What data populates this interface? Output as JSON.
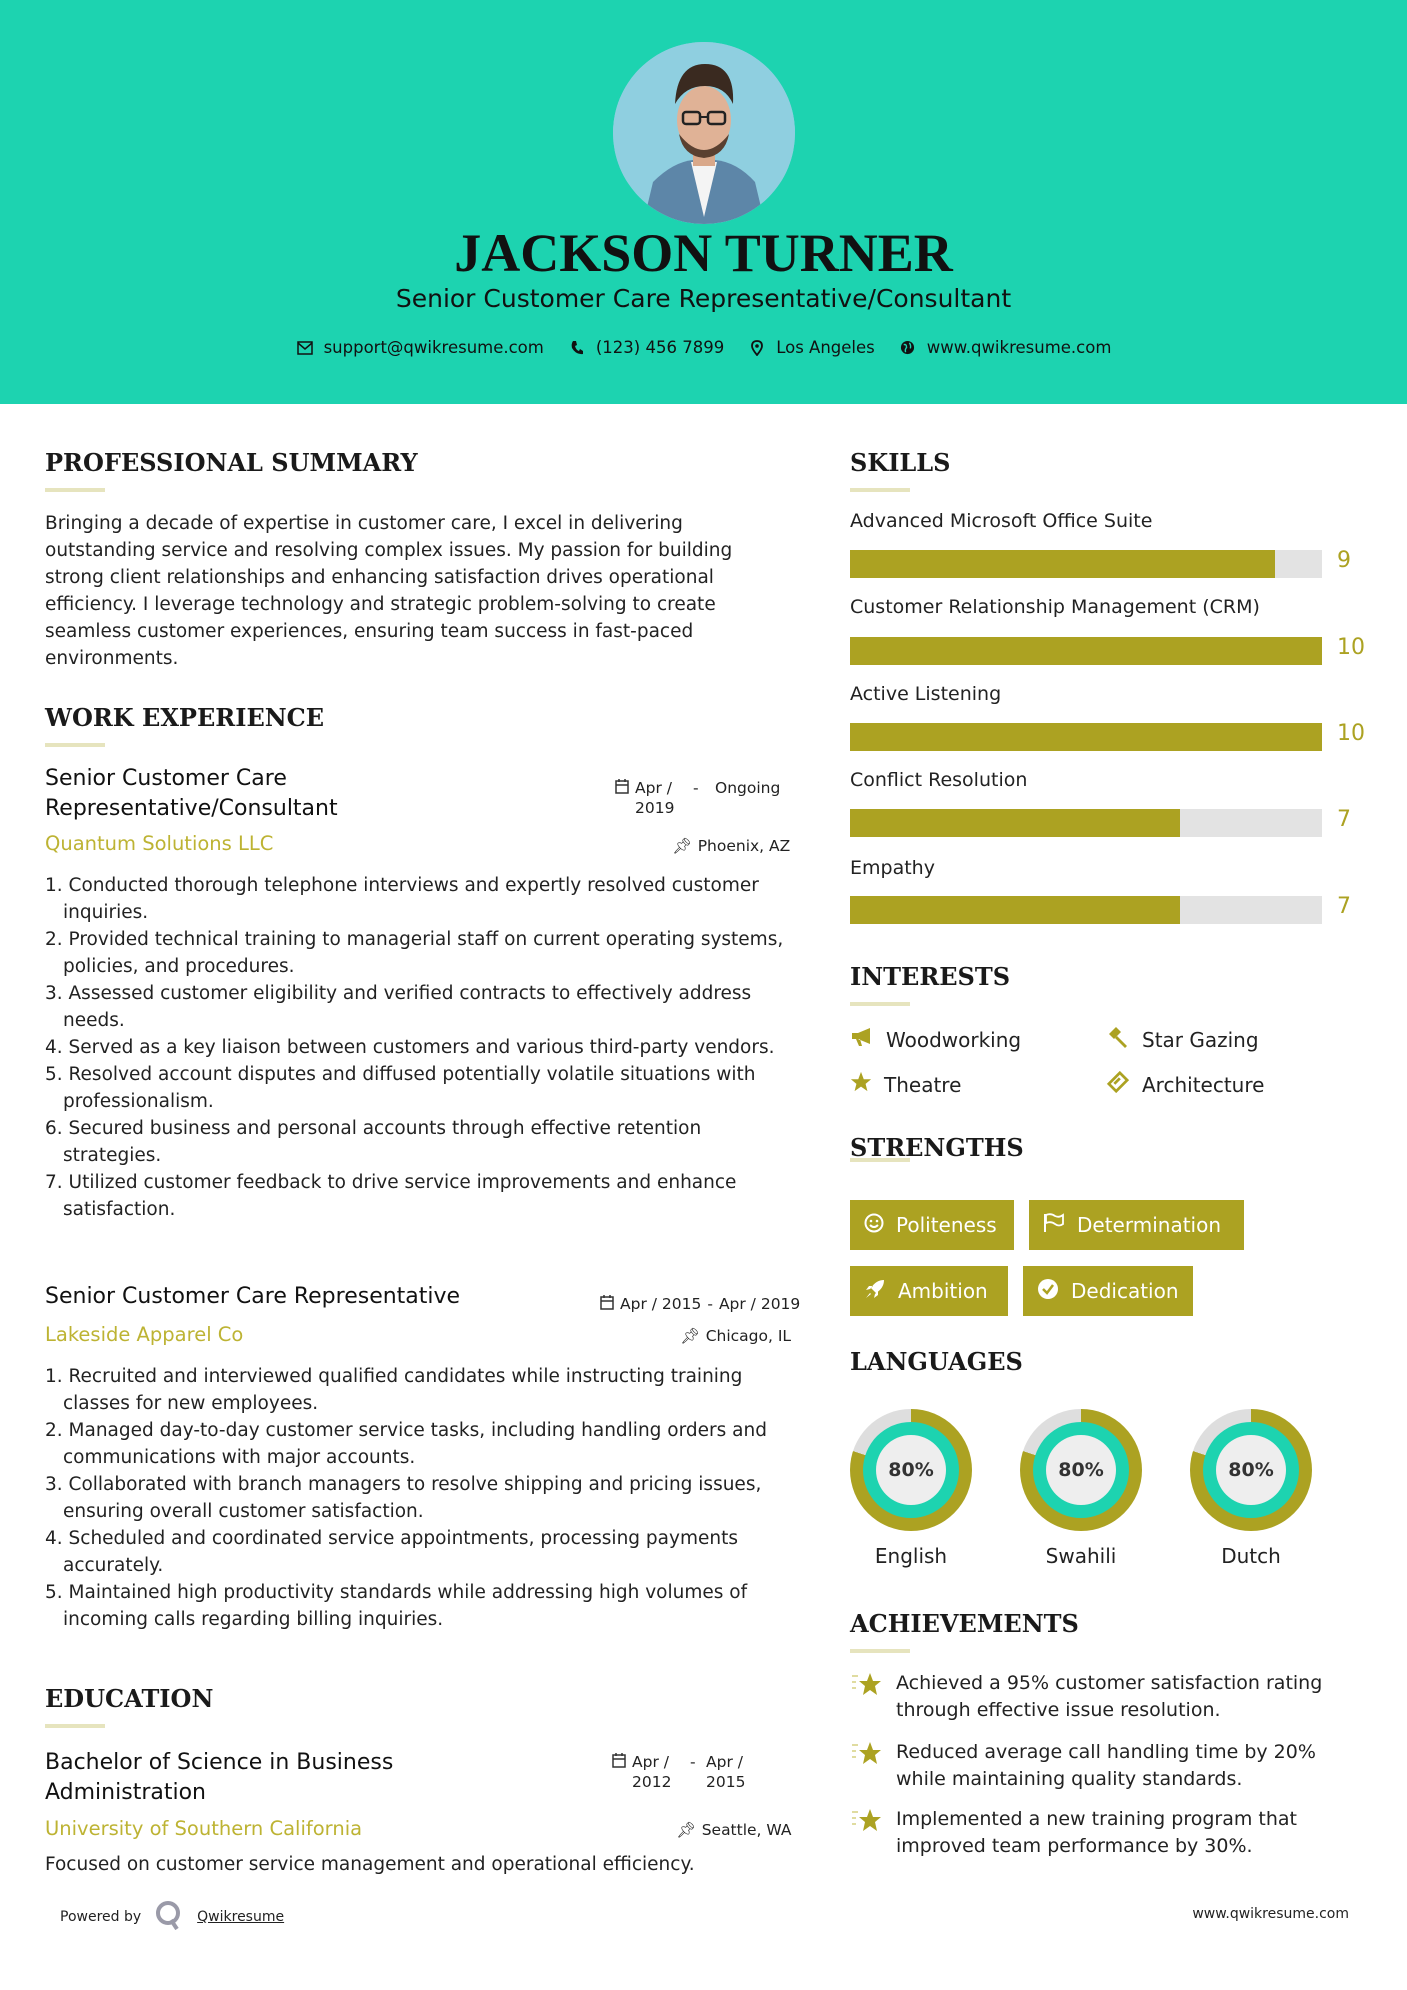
{
  "header": {
    "name": "JACKSON TURNER",
    "title": "Senior Customer Care Representative/Consultant",
    "email": "support@qwikresume.com",
    "phone": "(123) 456 7899",
    "location": "Los Angeles",
    "website": "www.qwikresume.com"
  },
  "summary": {
    "heading": "PROFESSIONAL SUMMARY",
    "text": "Bringing a decade of expertise in customer care, I excel in delivering outstanding service and resolving complex issues. My passion for building strong client relationships and enhancing satisfaction drives operational efficiency. I leverage technology and strategic problem-solving to create seamless customer experiences, ensuring team success in fast-paced environments."
  },
  "experience": {
    "heading": "WORK EXPERIENCE",
    "jobs": [
      {
        "title": "Senior Customer Care Representative/Consultant",
        "start": "Apr / 2019",
        "end": "Ongoing",
        "company": "Quantum Solutions LLC",
        "location": "Phoenix, AZ",
        "duties": [
          "Conducted thorough telephone interviews and expertly resolved customer inquiries.",
          "Provided technical training to managerial staff on current operating systems, policies, and procedures.",
          "Assessed customer eligibility and verified contracts to effectively address needs.",
          "Served as a key liaison between customers and various third-party vendors.",
          "Resolved account disputes and diffused potentially volatile situations with professionalism.",
          "Secured business and personal accounts through effective retention strategies.",
          "Utilized customer feedback to drive service improvements and enhance satisfaction."
        ]
      },
      {
        "title": "Senior Customer Care Representative",
        "start": "Apr / 2015",
        "end": "Apr / 2019",
        "company": "Lakeside Apparel Co",
        "location": "Chicago, IL",
        "duties": [
          "Recruited and interviewed qualified candidates while instructing training classes for new employees.",
          "Managed day-to-day customer service tasks, including handling orders and communications with major accounts.",
          "Collaborated with branch managers to resolve shipping and pricing issues, ensuring overall customer satisfaction.",
          "Scheduled and coordinated service appointments, processing payments accurately.",
          "Maintained high productivity standards while addressing high volumes of incoming calls regarding billing inquiries."
        ]
      }
    ]
  },
  "education": {
    "heading": "EDUCATION",
    "degree": "Bachelor of Science in Business Administration",
    "start": "Apr / 2012",
    "end": "Apr / 2015",
    "school": "University of Southern California",
    "location": "Seattle, WA",
    "description": "Focused on customer service management and operational efficiency."
  },
  "skills": {
    "heading": "SKILLS",
    "max": 10,
    "items": [
      {
        "label": "Advanced Microsoft Office Suite",
        "value": 9
      },
      {
        "label": "Customer Relationship Management (CRM)",
        "value": 10
      },
      {
        "label": "Active Listening",
        "value": 10
      },
      {
        "label": "Conflict Resolution",
        "value": 7
      },
      {
        "label": "Empathy",
        "value": 7
      }
    ]
  },
  "interests": {
    "heading": "INTERESTS",
    "items": [
      {
        "label": "Woodworking",
        "icon": "bullhorn-icon"
      },
      {
        "label": "Star Gazing",
        "icon": "gavel-icon"
      },
      {
        "label": "Theatre",
        "icon": "star-icon"
      },
      {
        "label": "Architecture",
        "icon": "ticket-icon"
      }
    ]
  },
  "strengths": {
    "heading": "STRENGTHS",
    "items": [
      {
        "label": "Politeness",
        "icon": "smile-icon"
      },
      {
        "label": "Determination",
        "icon": "flag-icon"
      },
      {
        "label": "Ambition",
        "icon": "rocket-icon"
      },
      {
        "label": "Dedication",
        "icon": "check-circle-icon"
      }
    ]
  },
  "languages": {
    "heading": "LANGUAGES",
    "items": [
      {
        "label": "English",
        "percent": 80,
        "display": "80%"
      },
      {
        "label": "Swahili",
        "percent": 80,
        "display": "80%"
      },
      {
        "label": "Dutch",
        "percent": 80,
        "display": "80%"
      }
    ]
  },
  "achievements": {
    "heading": "ACHIEVEMENTS",
    "items": [
      "Achieved a 95% customer satisfaction rating through effective issue resolution.",
      "Reduced average call handling time by 20% while maintaining quality standards.",
      "Implemented a new training program that improved team performance by 30%."
    ]
  },
  "footer": {
    "powered_by": "Powered by",
    "brand": "Qwikresume",
    "website": "www.qwikresume.com"
  },
  "colors": {
    "header_bg": "#1dd3b0",
    "accent": "#aca222",
    "bar_track": "#e3e3e3"
  }
}
